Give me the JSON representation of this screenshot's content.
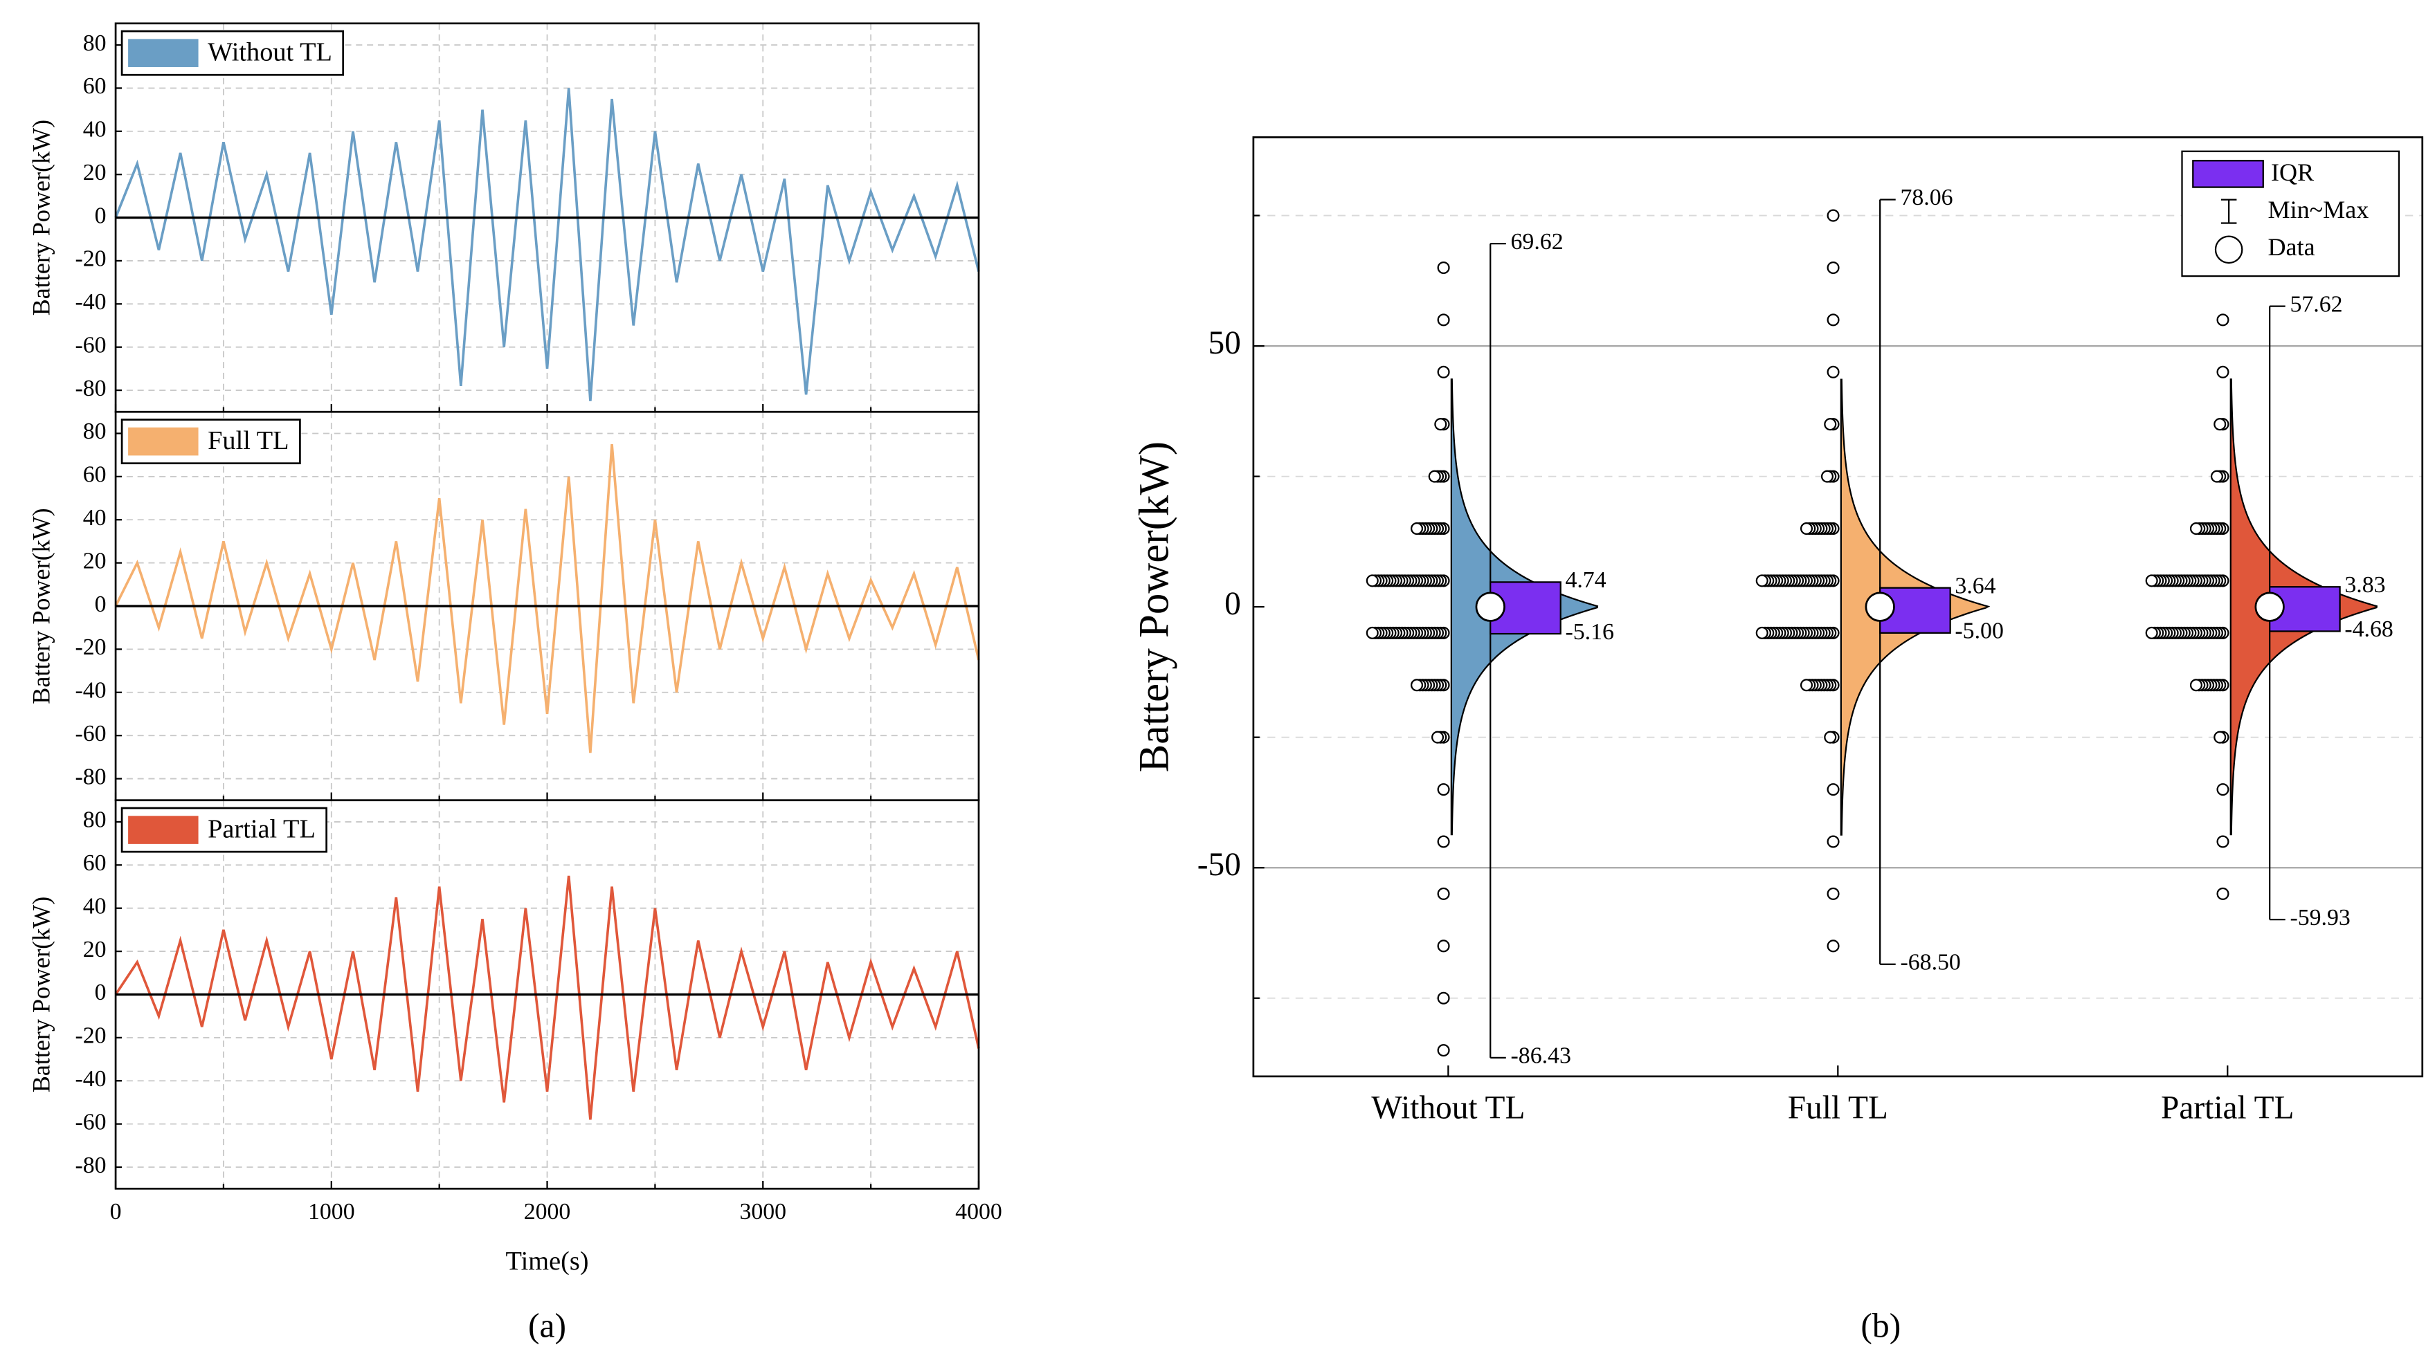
{
  "chart_data": [
    {
      "type": "line",
      "ylabel": "Battery Power(kW)",
      "xlim": [
        0,
        4000
      ],
      "xticks": [
        0,
        1000,
        2000,
        3000,
        4000
      ],
      "minor_xticks": [
        500,
        1500,
        2500,
        3500
      ],
      "ylim": [
        -90,
        90
      ],
      "yticks": [
        -80,
        -60,
        -40,
        -20,
        0,
        20,
        40,
        60,
        80
      ],
      "grid": true,
      "legend": "upper left",
      "x": [
        0,
        100,
        200,
        300,
        400,
        500,
        600,
        700,
        800,
        900,
        1000,
        1100,
        1200,
        1300,
        1400,
        1500,
        1600,
        1700,
        1800,
        1900,
        2000,
        2100,
        2200,
        2300,
        2400,
        2500,
        2600,
        2700,
        2800,
        2900,
        3000,
        3100,
        3200,
        3300,
        3400,
        3500,
        3600,
        3700,
        3800,
        3900,
        4000
      ],
      "series": [
        {
          "name": "Without TL",
          "color": "#6a9ec5",
          "values": [
            0,
            25,
            -15,
            30,
            -20,
            35,
            -10,
            20,
            -25,
            30,
            -45,
            40,
            -30,
            35,
            -25,
            45,
            -78,
            50,
            -60,
            45,
            -70,
            60,
            -85,
            55,
            -50,
            40,
            -30,
            25,
            -20,
            20,
            -25,
            18,
            -82,
            15,
            -20,
            12,
            -15,
            10,
            -18,
            15,
            -25
          ]
        }
      ]
    },
    {
      "type": "line",
      "ylabel": "Battery Power(kW)",
      "xlim": [
        0,
        4000
      ],
      "xticks": [
        0,
        1000,
        2000,
        3000,
        4000
      ],
      "minor_xticks": [
        500,
        1500,
        2500,
        3500
      ],
      "ylim": [
        -90,
        90
      ],
      "yticks": [
        -80,
        -60,
        -40,
        -20,
        0,
        20,
        40,
        60,
        80
      ],
      "grid": true,
      "legend": "upper left",
      "x": [
        0,
        100,
        200,
        300,
        400,
        500,
        600,
        700,
        800,
        900,
        1000,
        1100,
        1200,
        1300,
        1400,
        1500,
        1600,
        1700,
        1800,
        1900,
        2000,
        2100,
        2200,
        2300,
        2400,
        2500,
        2600,
        2700,
        2800,
        2900,
        3000,
        3100,
        3200,
        3300,
        3400,
        3500,
        3600,
        3700,
        3800,
        3900,
        4000
      ],
      "series": [
        {
          "name": "Full TL",
          "color": "#f5b06f",
          "values": [
            0,
            20,
            -10,
            25,
            -15,
            30,
            -12,
            20,
            -15,
            15,
            -20,
            20,
            -25,
            30,
            -35,
            50,
            -45,
            40,
            -55,
            45,
            -50,
            60,
            -68,
            75,
            -45,
            40,
            -40,
            30,
            -20,
            20,
            -15,
            18,
            -20,
            15,
            -15,
            12,
            -10,
            15,
            -18,
            18,
            -25
          ]
        }
      ]
    },
    {
      "type": "line",
      "ylabel": "Battery Power(kW)",
      "xlabel": "Time(s)",
      "caption": "(a)",
      "xlim": [
        0,
        4000
      ],
      "xticks": [
        0,
        1000,
        2000,
        3000,
        4000
      ],
      "minor_xticks": [
        500,
        1500,
        2500,
        3500
      ],
      "ylim": [
        -90,
        90
      ],
      "yticks": [
        -80,
        -60,
        -40,
        -20,
        0,
        20,
        40,
        60,
        80
      ],
      "grid": true,
      "legend": "upper left",
      "x": [
        0,
        100,
        200,
        300,
        400,
        500,
        600,
        700,
        800,
        900,
        1000,
        1100,
        1200,
        1300,
        1400,
        1500,
        1600,
        1700,
        1800,
        1900,
        2000,
        2100,
        2200,
        2300,
        2400,
        2500,
        2600,
        2700,
        2800,
        2900,
        3000,
        3100,
        3200,
        3300,
        3400,
        3500,
        3600,
        3700,
        3800,
        3900,
        4000
      ],
      "series": [
        {
          "name": "Partial TL",
          "color": "#e0573a",
          "values": [
            0,
            15,
            -10,
            25,
            -15,
            30,
            -12,
            25,
            -15,
            20,
            -30,
            20,
            -35,
            45,
            -45,
            50,
            -40,
            35,
            -50,
            40,
            -45,
            55,
            -58,
            50,
            -45,
            40,
            -35,
            25,
            -20,
            20,
            -15,
            20,
            -35,
            15,
            -20,
            15,
            -15,
            12,
            -15,
            20,
            -25
          ]
        }
      ]
    },
    {
      "type": "violin",
      "ylabel": "Battery Power(kW)",
      "caption": "(b)",
      "ylim": [
        -90,
        90
      ],
      "yticks": [
        -50,
        0,
        50
      ],
      "minor_yticks": [
        -75,
        -25,
        25,
        75
      ],
      "legend": {
        "position": "upper right",
        "items": [
          "IQR",
          "Min~Max",
          "Data"
        ]
      },
      "iqr_color": "#7b2ff0",
      "categories": [
        "Without TL",
        "Full TL",
        "Partial TL"
      ],
      "series": [
        {
          "color": "#6a9ec5",
          "max": 69.62,
          "min": -86.43,
          "q3": 4.74,
          "q1": -5.16,
          "mean": 0,
          "value_labels": {
            "max": "69.62",
            "min": "-86.43",
            "q3": "4.74",
            "q1": "-5.16"
          },
          "points": [
            65,
            55,
            45,
            35,
            25,
            15,
            5,
            -5,
            -15,
            -25,
            -35,
            -45,
            -55,
            -65,
            -75,
            -85
          ],
          "point_counts": [
            1,
            1,
            1,
            2,
            4,
            10,
            25,
            25,
            10,
            3,
            1,
            1,
            1,
            1,
            1,
            1
          ]
        },
        {
          "color": "#f5b06f",
          "max": 78.06,
          "min": -68.5,
          "q3": 3.64,
          "q1": -5,
          "mean": 0,
          "value_labels": {
            "max": "78.06",
            "min": "-68.50",
            "q3": "3.64",
            "q1": "-5.00"
          },
          "points": [
            75,
            65,
            55,
            45,
            35,
            25,
            15,
            5,
            -5,
            -15,
            -25,
            -35,
            -45,
            -55,
            -65
          ],
          "point_counts": [
            1,
            1,
            1,
            1,
            2,
            3,
            10,
            25,
            25,
            10,
            2,
            1,
            1,
            1,
            1
          ]
        },
        {
          "color": "#e0573a",
          "max": 57.62,
          "min": -59.93,
          "q3": 3.83,
          "q1": -4.68,
          "mean": 0,
          "value_labels": {
            "max": "57.62",
            "min": "-59.93",
            "q3": "3.83",
            "q1": "-4.68"
          },
          "points": [
            55,
            45,
            35,
            25,
            15,
            5,
            -5,
            -15,
            -25,
            -35,
            -45,
            -55
          ],
          "point_counts": [
            1,
            1,
            2,
            3,
            10,
            25,
            25,
            10,
            2,
            1,
            1,
            1
          ]
        }
      ]
    }
  ]
}
